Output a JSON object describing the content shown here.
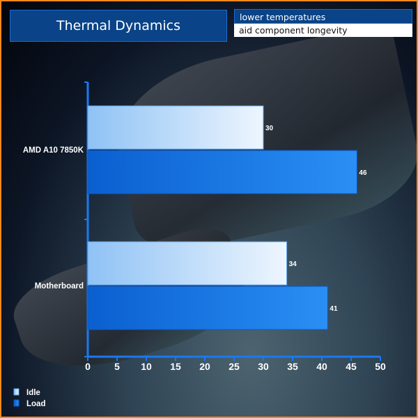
{
  "header": {
    "title": "Thermal Dynamics",
    "tagline_1": "lower temperatures",
    "tagline_2": "aid component longevity"
  },
  "colors": {
    "border": "#f28a1a",
    "idle": "#cde4fb",
    "load": "#1577e6",
    "axis": "#1a7af0"
  },
  "chart_data": {
    "type": "bar",
    "orientation": "horizontal",
    "categories": [
      "AMD A10 7850K",
      "Motherboard"
    ],
    "series": [
      {
        "name": "Idle",
        "values": [
          30,
          34
        ]
      },
      {
        "name": "Load",
        "values": [
          46,
          41
        ]
      }
    ],
    "xlim": [
      0,
      50
    ],
    "xticks": [
      "0",
      "5",
      "10",
      "15",
      "20",
      "25",
      "30",
      "35",
      "40",
      "45",
      "50"
    ],
    "legend_placement": "bottom-left",
    "grid": false,
    "data_labels": true
  }
}
